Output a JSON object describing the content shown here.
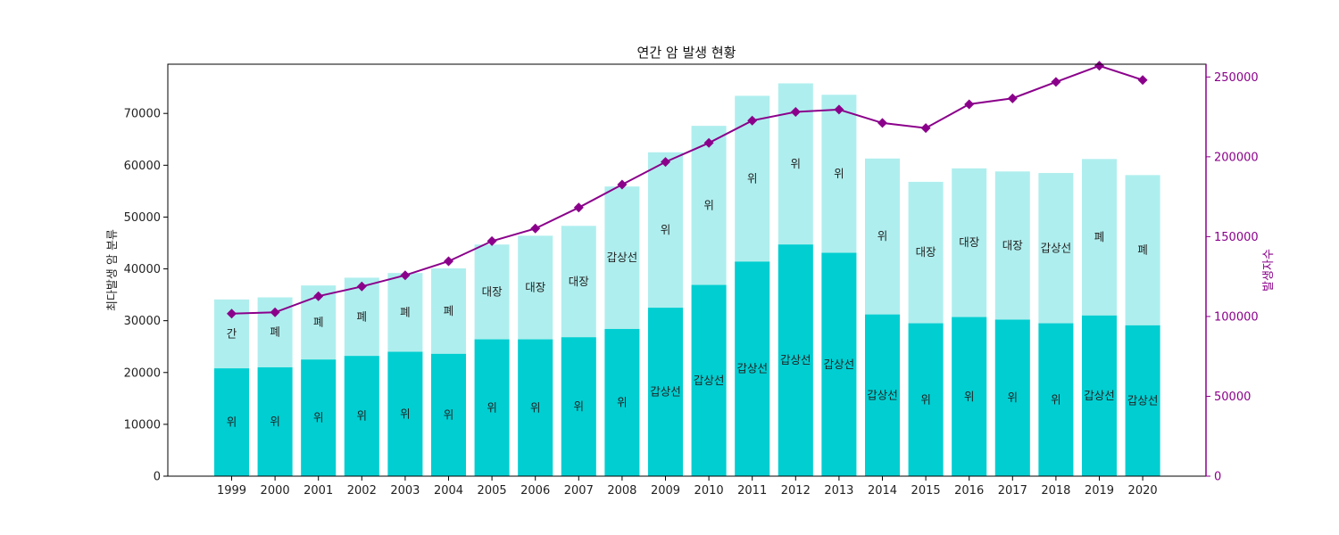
{
  "chart_data": {
    "type": "bar",
    "title": "연간 암 발생 현황",
    "ylabel_left": "최다발생 암 분류",
    "ylabel_right": "발생자수",
    "ylim_left": [
      0,
      79500
    ],
    "ylim_right": [
      0,
      258000
    ],
    "yticks_left": [
      0,
      10000,
      20000,
      30000,
      40000,
      50000,
      60000,
      70000
    ],
    "yticks_right": [
      0,
      50000,
      100000,
      150000,
      200000,
      250000
    ],
    "categories": [
      "1999",
      "2000",
      "2001",
      "2002",
      "2003",
      "2004",
      "2005",
      "2006",
      "2007",
      "2008",
      "2009",
      "2010",
      "2011",
      "2012",
      "2013",
      "2014",
      "2015",
      "2016",
      "2017",
      "2018",
      "2019",
      "2020"
    ],
    "series": [
      {
        "role": "first",
        "color": "#00CED1",
        "values": [
          20800,
          21000,
          22500,
          23200,
          24000,
          23600,
          26400,
          26400,
          26800,
          28400,
          32500,
          36900,
          41400,
          44700,
          43100,
          31200,
          29500,
          30700,
          30200,
          29500,
          31000,
          29100
        ],
        "labels": [
          "위",
          "위",
          "위",
          "위",
          "위",
          "위",
          "위",
          "위",
          "위",
          "위",
          "갑상선",
          "갑상선",
          "갑상선",
          "갑상선",
          "갑상선",
          "갑상선",
          "위",
          "위",
          "위",
          "위",
          "갑상선",
          "갑상선"
        ]
      },
      {
        "role": "second",
        "color": "#AFEEEE",
        "values": [
          34100,
          34500,
          36800,
          38300,
          39200,
          40100,
          44700,
          46400,
          48300,
          55900,
          62500,
          67600,
          73400,
          75800,
          73600,
          61300,
          56800,
          59400,
          58800,
          58500,
          61200,
          58100
        ],
        "labels": [
          "간",
          "폐",
          "폐",
          "폐",
          "폐",
          "폐",
          "대장",
          "대장",
          "대장",
          "갑상선",
          "위",
          "위",
          "위",
          "위",
          "위",
          "위",
          "대장",
          "대장",
          "대장",
          "갑상선",
          "폐",
          "폐"
        ]
      },
      {
        "role": "total",
        "type": "line",
        "color": "#8B008B",
        "values": [
          101800,
          102600,
          112700,
          118800,
          125800,
          134600,
          147200,
          155100,
          168200,
          182600,
          196800,
          208700,
          222700,
          228100,
          229600,
          221200,
          218000,
          232900,
          236600,
          246900,
          257000,
          248100
        ]
      }
    ]
  }
}
